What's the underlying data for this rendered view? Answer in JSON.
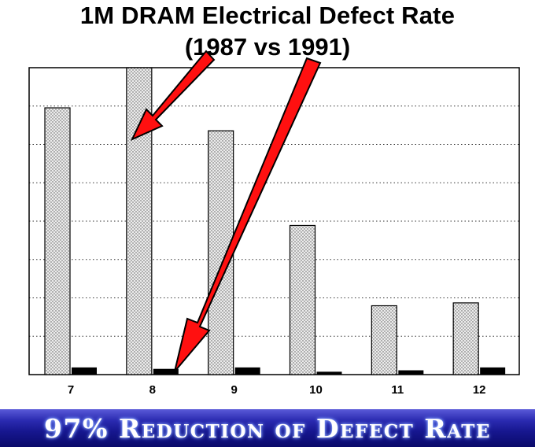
{
  "header": {
    "line1": "1M DRAM Electrical Defect Rate",
    "line2": "(1987 vs 1991)"
  },
  "banner": {
    "text": "97% Reduction of Defect Rate"
  },
  "colors": {
    "arrow": "#ff1010",
    "bar_1991": "#000000",
    "bar_1987_fill": "#e4e4e4",
    "banner_bg": "#16168e"
  },
  "chart_data": {
    "type": "bar",
    "categories": [
      "7",
      "8",
      "9",
      "10",
      "11",
      "12"
    ],
    "series": [
      {
        "values": [
          93,
          107,
          85,
          52,
          24,
          25
        ]
      },
      {
        "values": [
          2.5,
          2,
          2.5,
          1,
          1.5,
          2.5
        ]
      }
    ],
    "title": "",
    "xlabel": "",
    "ylabel": "",
    "ylim": [
      0,
      107
    ],
    "grid": true,
    "legend": "none"
  }
}
